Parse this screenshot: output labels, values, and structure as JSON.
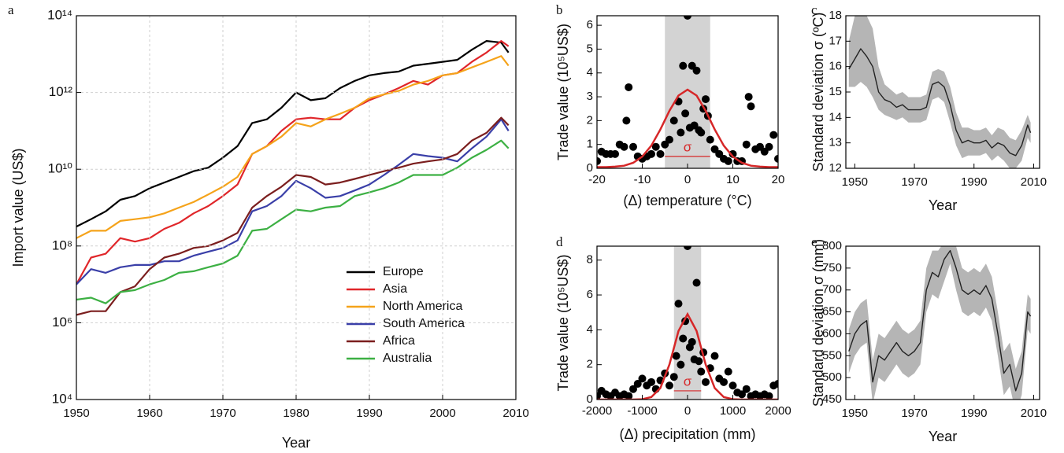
{
  "chart_data": [
    {
      "type": "line",
      "label": "a",
      "x_label": "Year",
      "y_label": "Import value (US$)",
      "yscale": "log",
      "grid": true,
      "legend": "lower right",
      "xlim": [
        1950,
        2010
      ],
      "xticks": [
        1950,
        1960,
        1970,
        1980,
        1990,
        2000,
        2010
      ],
      "ylim": [
        10000.0,
        100000000000000.0
      ],
      "yticks": [
        {
          "value": 10000.0,
          "label": "10⁴"
        },
        {
          "value": 1000000.0,
          "label": "10⁶"
        },
        {
          "value": 100000000.0,
          "label": "10⁸"
        },
        {
          "value": 10000000000.0,
          "label": "10¹⁰"
        },
        {
          "value": 1000000000000.0,
          "label": "10¹²"
        },
        {
          "value": 100000000000000.0,
          "label": "10¹⁴"
        }
      ],
      "x": [
        1950,
        1952,
        1954,
        1956,
        1958,
        1960,
        1962,
        1964,
        1966,
        1968,
        1970,
        1972,
        1974,
        1976,
        1978,
        1980,
        1982,
        1984,
        1986,
        1988,
        1990,
        1992,
        1994,
        1996,
        1998,
        2000,
        2002,
        2004,
        2006,
        2008,
        2009
      ],
      "series": [
        {
          "name": "Europe",
          "color": "#000000",
          "values": [
            320000000.0,
            500000000.0,
            800000000.0,
            1600000000.0,
            2000000000.0,
            3200000000.0,
            4500000000.0,
            6300000000.0,
            8900000000.0,
            11000000000.0,
            20000000000.0,
            40000000000.0,
            160000000000.0,
            200000000000.0,
            400000000000.0,
            1000000000000.0,
            630000000000.0,
            710000000000.0,
            1300000000000.0,
            2000000000000.0,
            2800000000000.0,
            3200000000000.0,
            3500000000000.0,
            5000000000000.0,
            5600000000000.0,
            6300000000000.0,
            7100000000000.0,
            13000000000000.0,
            22000000000000.0,
            20000000000000.0,
            11000000000000.0
          ]
        },
        {
          "name": "Asia",
          "color": "#e0262a",
          "values": [
            10000000.0,
            50000000.0,
            63000000.0,
            160000000.0,
            130000000.0,
            160000000.0,
            280000000.0,
            400000000.0,
            710000000.0,
            1100000000.0,
            2000000000.0,
            4000000000.0,
            25000000000.0,
            40000000000.0,
            100000000000.0,
            200000000000.0,
            220000000000.0,
            200000000000.0,
            200000000000.0,
            400000000000.0,
            630000000000.0,
            890000000000.0,
            1300000000000.0,
            2000000000000.0,
            1600000000000.0,
            2800000000000.0,
            3200000000000.0,
            6300000000000.0,
            11000000000000.0,
            22000000000000.0,
            16000000000000.0
          ]
        },
        {
          "name": "North America",
          "color": "#f5a31a",
          "values": [
            160000000.0,
            250000000.0,
            250000000.0,
            450000000.0,
            500000000.0,
            560000000.0,
            710000000.0,
            1000000000.0,
            1400000000.0,
            2200000000.0,
            3500000000.0,
            6300000000.0,
            25000000000.0,
            40000000000.0,
            71000000000.0,
            160000000000.0,
            130000000000.0,
            200000000000.0,
            280000000000.0,
            400000000000.0,
            710000000000.0,
            890000000000.0,
            1100000000000.0,
            1600000000000.0,
            2000000000000.0,
            2800000000000.0,
            3200000000000.0,
            4500000000000.0,
            6300000000000.0,
            8900000000000.0,
            5000000000000.0
          ]
        },
        {
          "name": "South America",
          "color": "#3a3fa8",
          "values": [
            10000000.0,
            25000000.0,
            20000000.0,
            28000000.0,
            32000000.0,
            32000000.0,
            40000000.0,
            40000000.0,
            56000000.0,
            71000000.0,
            89000000.0,
            140000000.0,
            800000000.0,
            1100000000.0,
            2000000000.0,
            5000000000.0,
            3200000000.0,
            1800000000.0,
            2000000000.0,
            2800000000.0,
            4000000000.0,
            7100000000.0,
            13000000000.0,
            25000000000.0,
            22000000000.0,
            20000000000.0,
            16000000000.0,
            35000000000.0,
            71000000000.0,
            200000000000.0,
            100000000000.0
          ]
        },
        {
          "name": "Africa",
          "color": "#7b1e1e",
          "values": [
            1600000.0,
            2000000.0,
            2000000.0,
            6300000.0,
            8900000.0,
            25000000.0,
            50000000.0,
            63000000.0,
            89000000.0,
            100000000.0,
            140000000.0,
            220000000.0,
            1000000000.0,
            2000000000.0,
            3500000000.0,
            7100000000.0,
            6300000000.0,
            4000000000.0,
            4500000000.0,
            5600000000.0,
            7100000000.0,
            8900000000.0,
            11000000000.0,
            14000000000.0,
            16000000000.0,
            18000000000.0,
            25000000000.0,
            56000000000.0,
            89000000000.0,
            220000000000.0,
            140000000000.0
          ]
        },
        {
          "name": "Australia",
          "color": "#3cb043",
          "values": [
            4000000.0,
            4500000.0,
            3200000.0,
            6300000.0,
            7100000.0,
            10000000.0,
            13000000.0,
            20000000.0,
            22000000.0,
            28000000.0,
            35000000.0,
            56000000.0,
            250000000.0,
            280000000.0,
            500000000.0,
            890000000.0,
            800000000.0,
            1000000000.0,
            1100000000.0,
            2000000000.0,
            2500000000.0,
            3200000000.0,
            4500000000.0,
            7100000000.0,
            7100000000.0,
            7100000000.0,
            11000000000.0,
            20000000000.0,
            32000000000.0,
            56000000000.0,
            35000000000.0
          ]
        }
      ]
    },
    {
      "type": "scatter",
      "label": "b",
      "x_label": "(Δ) temperature (°C)",
      "y_label": "Trade value (10⁵US$)",
      "xlim": [
        -20,
        20
      ],
      "xticks": [
        -20,
        -10,
        0,
        10,
        20
      ],
      "ylim": [
        0,
        6.4
      ],
      "yticks": [
        0,
        1,
        2,
        3,
        4,
        5,
        6
      ],
      "color": "#000000",
      "band": [
        -5,
        5
      ],
      "band_color": "#d3d3d3",
      "x": [
        -20,
        -19,
        -18,
        -17,
        -16,
        -15,
        -14,
        -13.5,
        -13,
        -12,
        -11,
        -10,
        -9,
        -8,
        -7,
        -6,
        -5,
        -4,
        -3,
        -2,
        -1.5,
        -1,
        -0.5,
        0,
        0.5,
        1,
        1.5,
        2,
        2.5,
        3,
        3.5,
        4,
        4.5,
        5,
        6,
        7,
        8,
        9,
        10,
        11,
        12,
        13,
        13.5,
        14,
        15,
        16,
        17,
        18,
        19,
        20
      ],
      "values": [
        0.3,
        0.7,
        0.6,
        0.6,
        0.6,
        1.0,
        0.9,
        2.0,
        3.4,
        0.9,
        0.5,
        0.4,
        0.5,
        0.6,
        0.9,
        0.6,
        1.0,
        1.2,
        2.0,
        2.8,
        1.5,
        4.3,
        2.3,
        6.4,
        1.7,
        4.3,
        1.8,
        4.1,
        1.6,
        1.5,
        2.5,
        2.9,
        2.2,
        1.2,
        0.8,
        0.6,
        0.4,
        0.3,
        0.6,
        0.3,
        0.3,
        1.0,
        3.0,
        2.6,
        0.8,
        0.9,
        0.7,
        0.9,
        1.4,
        0.4
      ],
      "fit": {
        "color": "#d62728",
        "x": [
          -20,
          -18,
          -16,
          -14,
          -12,
          -10,
          -8,
          -6,
          -4,
          -2,
          0,
          2,
          4,
          6,
          8,
          10,
          12,
          14,
          16,
          18,
          20
        ],
        "values": [
          0.05,
          0.05,
          0.07,
          0.11,
          0.23,
          0.49,
          0.95,
          1.63,
          2.41,
          3.05,
          3.3,
          3.05,
          2.41,
          1.63,
          0.95,
          0.49,
          0.23,
          0.11,
          0.07,
          0.05,
          0.05
        ]
      },
      "sigma": {
        "x": [
          -5,
          5
        ],
        "y": 0.5,
        "label": "σ"
      }
    },
    {
      "type": "line",
      "label": "c",
      "x_label": "Year",
      "y_label": "Standard deviation σ (ºC)",
      "xlim": [
        1947,
        2012
      ],
      "xticks": [
        1950,
        1970,
        1990,
        2010
      ],
      "ylim": [
        12,
        18
      ],
      "yticks": [
        12,
        13,
        14,
        15,
        16,
        17,
        18
      ],
      "x": [
        1948,
        1950,
        1952,
        1954,
        1956,
        1958,
        1960,
        1962,
        1964,
        1966,
        1968,
        1970,
        1972,
        1974,
        1976,
        1978,
        1980,
        1982,
        1984,
        1986,
        1988,
        1990,
        1992,
        1994,
        1996,
        1998,
        2000,
        2002,
        2004,
        2006,
        2008,
        2009
      ],
      "series": [
        {
          "color": "#222222",
          "band_color": "#b5b5b5",
          "values": [
            15.9,
            16.3,
            16.7,
            16.4,
            16.0,
            15.0,
            14.7,
            14.6,
            14.4,
            14.5,
            14.3,
            14.3,
            14.3,
            14.4,
            15.3,
            15.4,
            15.2,
            14.5,
            13.5,
            13.0,
            13.1,
            13.0,
            13.0,
            13.1,
            12.8,
            13.0,
            12.9,
            12.6,
            12.5,
            12.9,
            13.7,
            13.4
          ],
          "upper": [
            17.0,
            18,
            18,
            18,
            17.5,
            16.0,
            15.3,
            15.1,
            14.9,
            15.0,
            14.8,
            14.8,
            14.8,
            14.9,
            15.8,
            15.9,
            15.8,
            15.2,
            14.2,
            13.6,
            13.6,
            13.5,
            13.5,
            13.6,
            13.3,
            13.6,
            13.5,
            13.2,
            13.1,
            13.5,
            14.1,
            13.8
          ],
          "lower": [
            15.2,
            15.2,
            15.4,
            15.2,
            14.8,
            14.3,
            14.1,
            14.0,
            13.9,
            14.0,
            13.8,
            13.8,
            13.8,
            13.9,
            14.7,
            14.8,
            14.6,
            13.8,
            12.9,
            12.4,
            12.5,
            12.5,
            12.5,
            12.6,
            12.3,
            12.5,
            12.3,
            12.0,
            12.0,
            12.3,
            13.2,
            13.0
          ]
        }
      ]
    },
    {
      "type": "scatter",
      "label": "d",
      "x_label": "(Δ) precipitation (mm)",
      "y_label": "Trade value (10⁵US$)",
      "xlim": [
        -2000,
        2000
      ],
      "xticks": [
        -2000,
        -1000,
        0,
        1000,
        2000
      ],
      "ylim": [
        0,
        8.8
      ],
      "yticks": [
        0,
        2,
        4,
        6,
        8
      ],
      "color": "#000000",
      "band": [
        -300,
        300
      ],
      "band_color": "#d3d3d3",
      "x": [
        -2000,
        -1900,
        -1800,
        -1700,
        -1600,
        -1500,
        -1400,
        -1300,
        -1200,
        -1100,
        -1000,
        -900,
        -800,
        -700,
        -600,
        -500,
        -400,
        -300,
        -250,
        -200,
        -150,
        -100,
        -50,
        0,
        50,
        100,
        150,
        200,
        250,
        300,
        350,
        400,
        500,
        600,
        700,
        800,
        900,
        1000,
        1100,
        1200,
        1300,
        1400,
        1500,
        1600,
        1700,
        1800,
        1900,
        2000
      ],
      "values": [
        0.2,
        0.5,
        0.3,
        0.2,
        0.4,
        0.2,
        0.3,
        0.2,
        0.6,
        0.9,
        1.2,
        0.8,
        1.0,
        0.6,
        1.1,
        1.5,
        0.8,
        1.3,
        2.5,
        5.5,
        2.0,
        3.5,
        4.5,
        8.8,
        3.0,
        3.3,
        2.3,
        6.7,
        2.2,
        1.6,
        2.7,
        1.0,
        1.8,
        2.5,
        1.2,
        1.0,
        1.6,
        0.8,
        0.4,
        0.3,
        0.6,
        0.2,
        0.3,
        0.2,
        0.3,
        0.2,
        0.8,
        0.9
      ],
      "fit": {
        "color": "#d62728",
        "x": [
          -2000,
          -1800,
          -1600,
          -1400,
          -1200,
          -1000,
          -800,
          -600,
          -400,
          -200,
          0,
          200,
          400,
          600,
          800,
          1000,
          1200,
          1400,
          1600,
          1800,
          2000
        ],
        "values": [
          0,
          0,
          0,
          0,
          0,
          0.02,
          0.14,
          0.66,
          2.01,
          3.93,
          4.9,
          3.93,
          2.01,
          0.66,
          0.14,
          0.02,
          0,
          0,
          0,
          0,
          0
        ]
      },
      "sigma": {
        "x": [
          -300,
          300
        ],
        "y": 0.5,
        "label": "σ"
      }
    },
    {
      "type": "line",
      "label": "e",
      "x_label": "Year",
      "y_label": "Standard deviation σ (mm)",
      "xlim": [
        1947,
        2012
      ],
      "xticks": [
        1950,
        1970,
        1990,
        2010
      ],
      "ylim": [
        450,
        800
      ],
      "yticks": [
        450,
        500,
        550,
        600,
        650,
        700,
        750,
        800
      ],
      "x": [
        1948,
        1950,
        1952,
        1954,
        1956,
        1958,
        1960,
        1962,
        1964,
        1966,
        1968,
        1970,
        1972,
        1974,
        1976,
        1978,
        1980,
        1982,
        1984,
        1986,
        1988,
        1990,
        1992,
        1994,
        1996,
        1998,
        2000,
        2002,
        2004,
        2006,
        2008,
        2009
      ],
      "series": [
        {
          "color": "#222222",
          "band_color": "#b5b5b5",
          "values": [
            560,
            600,
            620,
            630,
            490,
            550,
            540,
            560,
            580,
            560,
            550,
            560,
            580,
            700,
            740,
            730,
            770,
            790,
            750,
            700,
            690,
            700,
            690,
            710,
            680,
            600,
            510,
            530,
            470,
            510,
            650,
            640
          ],
          "upper": [
            610,
            650,
            670,
            680,
            540,
            600,
            590,
            610,
            630,
            610,
            600,
            610,
            630,
            750,
            790,
            790,
            810,
            810,
            800,
            750,
            740,
            750,
            740,
            760,
            730,
            650,
            560,
            580,
            520,
            560,
            690,
            680
          ],
          "lower": [
            510,
            550,
            570,
            580,
            440,
            500,
            490,
            510,
            530,
            510,
            500,
            510,
            530,
            650,
            690,
            680,
            720,
            760,
            700,
            650,
            640,
            650,
            640,
            660,
            630,
            550,
            460,
            480,
            420,
            460,
            610,
            600
          ]
        }
      ]
    }
  ]
}
